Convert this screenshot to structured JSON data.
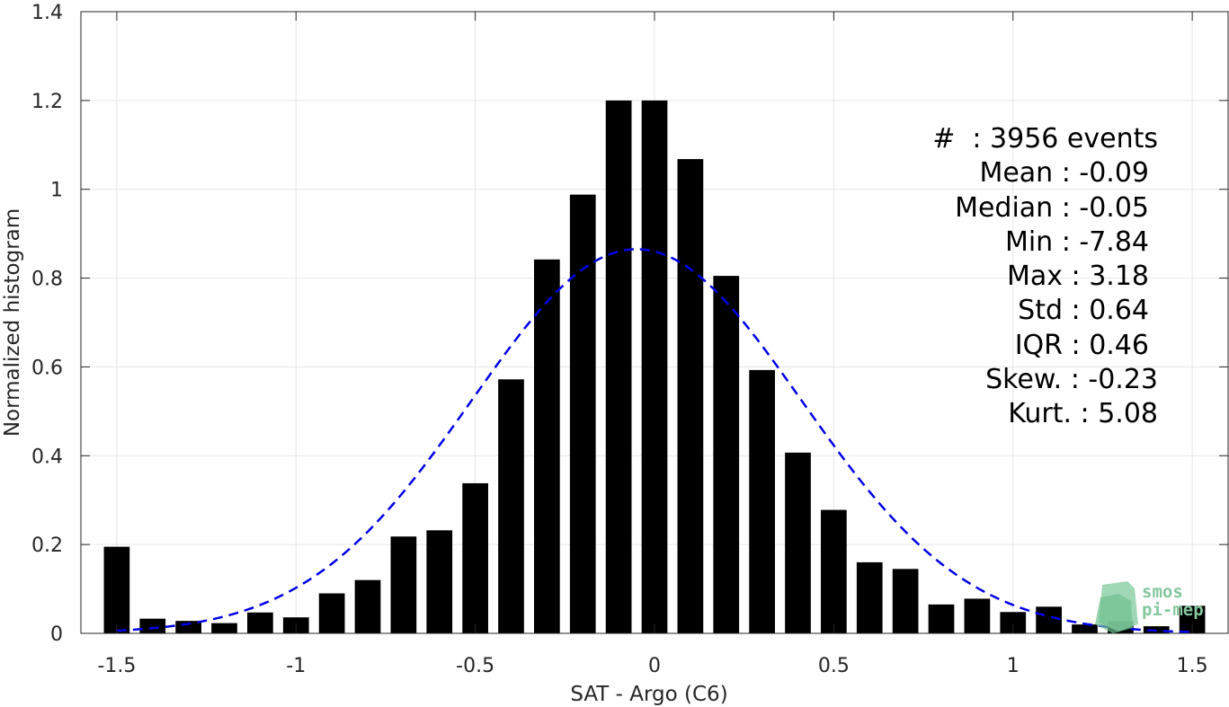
{
  "chart_data": {
    "type": "bar",
    "title": "",
    "xlabel": "SAT - Argo (C6)",
    "ylabel": "Normalized histogram",
    "xlim": [
      -1.6,
      1.6
    ],
    "ylim": [
      0,
      1.4
    ],
    "xticks": [
      "-1.5",
      "-1",
      "-0.5",
      "0",
      "0.5",
      "1",
      "1.5"
    ],
    "yticks": [
      "0",
      "0.2",
      "0.4",
      "0.6",
      "0.8",
      "1",
      "1.2",
      "1.4"
    ],
    "grid": true,
    "bar_color": "#000000",
    "fit_color": "#0000e6",
    "x": [
      -1.5,
      -1.4,
      -1.3,
      -1.2,
      -1.1,
      -1.0,
      -0.9,
      -0.8,
      -0.7,
      -0.6,
      -0.5,
      -0.4,
      -0.3,
      -0.2,
      -0.1,
      0.0,
      0.1,
      0.2,
      0.3,
      0.4,
      0.5,
      0.6,
      0.7,
      0.8,
      0.9,
      1.0,
      1.1,
      1.2,
      1.3,
      1.4,
      1.5
    ],
    "values": [
      0.195,
      0.033,
      0.028,
      0.023,
      0.047,
      0.036,
      0.09,
      0.12,
      0.218,
      0.232,
      0.338,
      0.572,
      0.842,
      0.988,
      1.2,
      1.2,
      1.068,
      0.805,
      0.593,
      0.407,
      0.278,
      0.16,
      0.145,
      0.065,
      0.078,
      0.048,
      0.06,
      0.02,
      0.027,
      0.016,
      0.062
    ],
    "fit": {
      "type": "normal",
      "mean": -0.05,
      "std": 0.46,
      "peak": 0.865,
      "xrange": [
        -1.5,
        1.5
      ],
      "style": "dashed"
    }
  },
  "stats": [
    "#  : 3956 events",
    "Mean : -0.09",
    "Median : -0.05",
    "Min : -7.84",
    "Max : 3.18",
    "Std : 0.64",
    "IQR : 0.46",
    "Skew. : -0.23",
    "Kurt. : 5.08"
  ],
  "logo": {
    "line1": "smos",
    "line2": "pi-mep"
  }
}
